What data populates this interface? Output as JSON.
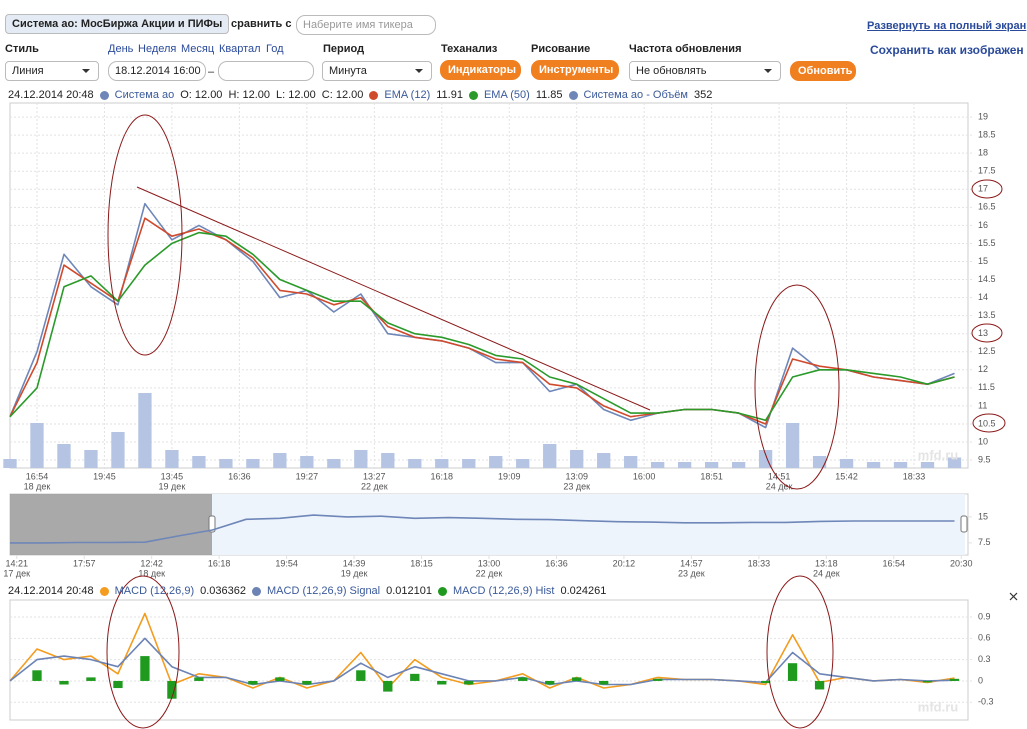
{
  "toolbar": {
    "instrument": "Система ао: МосБиржа Акции и ПИФы",
    "compare_label": "сравнить с",
    "compare_placeholder": "Наберите имя тикера",
    "fullscreen": "Развернуть на полный экран",
    "style_label": "Стиль",
    "ranges": [
      "День",
      "Неделя",
      "Месяц",
      "Квартал",
      "Год"
    ],
    "period_label": "Период",
    "ta_label": "Теханализ",
    "draw_label": "Рисование",
    "refresh_label": "Частота обновления",
    "save_image": "Сохранить как изображен",
    "style_value": "Линия",
    "date_from": "18.12.2014 16:00",
    "date_sep": "–",
    "period_value": "Минута",
    "indicators_button": "Индикаторы",
    "tools_button": "Инструменты",
    "refresh_value": "Не обновлять",
    "update_button": "Обновить"
  },
  "info": {
    "datetime": "24.12.2014 20:48",
    "ohlc": [
      "O: 12.00",
      "H: 12.00",
      "L: 12.00",
      "C: 12.00"
    ]
  },
  "main_chart": {
    "type": "line",
    "x": [
      0,
      4,
      8,
      12,
      16,
      20,
      24,
      28,
      32,
      36,
      40,
      44,
      48,
      52,
      56,
      60,
      64,
      68,
      72,
      76,
      80,
      84,
      88,
      92,
      96,
      100,
      104,
      108,
      112,
      116,
      120,
      124,
      128,
      132,
      136,
      140
    ],
    "xlim": [
      0,
      142
    ],
    "xticks": [
      {
        "value": 4,
        "label": "16:54",
        "date": "18 дек"
      },
      {
        "value": 14,
        "label": "19:45"
      },
      {
        "value": 24,
        "label": "13:45",
        "date": "19 дек"
      },
      {
        "value": 34,
        "label": "16:36"
      },
      {
        "value": 44,
        "label": "19:27"
      },
      {
        "value": 54,
        "label": "13:27",
        "date": "22 дек"
      },
      {
        "value": 64,
        "label": "16:18"
      },
      {
        "value": 74,
        "label": "19:09"
      },
      {
        "value": 84,
        "label": "13:09",
        "date": "23 дек"
      },
      {
        "value": 94,
        "label": "16:00"
      },
      {
        "value": 104,
        "label": "18:51"
      },
      {
        "value": 114,
        "label": "14:51",
        "date": "24 дек"
      },
      {
        "value": 124,
        "label": "15:42"
      },
      {
        "value": 134,
        "label": "18:33"
      }
    ],
    "ylim": [
      9.28,
      19.39
    ],
    "yticks": [
      9.5,
      10,
      10.5,
      11,
      11.5,
      12,
      12.5,
      13,
      13.5,
      14,
      14.5,
      15,
      15.5,
      16,
      16.5,
      17,
      17.5,
      18,
      18.5,
      19
    ],
    "grid": true,
    "series": [
      {
        "name": "Система ао",
        "color": "#6e86b8",
        "values": [
          10.7,
          12.5,
          15.2,
          14.3,
          13.8,
          16.6,
          15.6,
          16.0,
          15.6,
          15.0,
          14.0,
          14.2,
          13.6,
          14.1,
          13.0,
          12.9,
          12.8,
          12.6,
          12.2,
          12.2,
          11.4,
          11.6,
          10.9,
          10.6,
          10.8,
          10.9,
          10.9,
          10.8,
          10.4,
          12.6,
          12.0,
          12.0,
          11.8,
          11.7,
          11.6,
          11.9
        ]
      },
      {
        "name": "EMA (12)",
        "color": "#d04a2c",
        "last": 11.91,
        "values": [
          10.7,
          12.2,
          14.9,
          14.4,
          13.9,
          16.2,
          15.7,
          15.9,
          15.6,
          15.1,
          14.2,
          14.1,
          13.8,
          14.0,
          13.2,
          12.9,
          12.8,
          12.6,
          12.3,
          12.2,
          11.6,
          11.5,
          11.0,
          10.7,
          10.8,
          10.9,
          10.9,
          10.8,
          10.5,
          12.3,
          12.1,
          12.0,
          11.8,
          11.7,
          11.6,
          11.8
        ]
      },
      {
        "name": "EMA (50)",
        "color": "#2a9a2a",
        "last": 11.85,
        "values": [
          10.7,
          11.5,
          14.3,
          14.6,
          13.9,
          14.9,
          15.5,
          15.8,
          15.7,
          15.2,
          14.5,
          14.2,
          13.9,
          13.9,
          13.3,
          13.0,
          12.9,
          12.7,
          12.4,
          12.3,
          11.8,
          11.6,
          11.2,
          10.8,
          10.8,
          10.9,
          10.9,
          10.8,
          10.6,
          11.8,
          12.0,
          12.0,
          11.9,
          11.8,
          11.6,
          11.8
        ]
      }
    ],
    "volume": {
      "name": "Система ао - Объём",
      "color": "#b4c4e2",
      "last": 352,
      "values": [
        300,
        1500,
        800,
        600,
        1200,
        2500,
        600,
        400,
        300,
        300,
        500,
        400,
        300,
        600,
        500,
        300,
        300,
        300,
        400,
        300,
        800,
        600,
        500,
        400,
        200,
        200,
        200,
        200,
        600,
        1500,
        400,
        300,
        200,
        200,
        200,
        350
      ]
    },
    "watermark": "mfd.ru"
  },
  "navigator": {
    "type": "line",
    "x": [
      0,
      5,
      10,
      15,
      20,
      25,
      30,
      35,
      40,
      45,
      50,
      55,
      60,
      65,
      70,
      75,
      80,
      85,
      90,
      95,
      100,
      105,
      110,
      115,
      120,
      125,
      130,
      135,
      140
    ],
    "xlim": [
      0,
      142
    ],
    "xticks": [
      {
        "value": 1,
        "label": "14:21",
        "date": "17 дек"
      },
      {
        "value": 11,
        "label": "17:57"
      },
      {
        "value": 21,
        "label": "12:42",
        "date": "18 дек"
      },
      {
        "value": 31,
        "label": "16:18"
      },
      {
        "value": 41,
        "label": "19:54"
      },
      {
        "value": 51,
        "label": "14:39",
        "date": "19 дек"
      },
      {
        "value": 61,
        "label": "18:15"
      },
      {
        "value": 71,
        "label": "13:00",
        "date": "22 дек"
      },
      {
        "value": 81,
        "label": "16:36"
      },
      {
        "value": 91,
        "label": "20:12"
      },
      {
        "value": 101,
        "label": "14:57",
        "date": "23 дек"
      },
      {
        "value": 111,
        "label": "18:33"
      },
      {
        "value": 121,
        "label": "13:18",
        "date": "24 дек"
      },
      {
        "value": 131,
        "label": "16:54"
      },
      {
        "value": 141,
        "label": "20:30"
      }
    ],
    "ylim": [
      4.0,
      21.6
    ],
    "yticks": [
      7.5,
      15
    ],
    "grid": false,
    "series": [
      {
        "color": "#6e86b8",
        "values": [
          7.5,
          7.5,
          7.6,
          7.6,
          7.7,
          9.5,
          11.2,
          14.3,
          14.6,
          15.5,
          15.0,
          15.2,
          14.6,
          14.8,
          14.6,
          14.3,
          14.2,
          13.9,
          13.6,
          13.5,
          13.3,
          13.3,
          13.4,
          13.4,
          13.7,
          13.8,
          13.8,
          13.8,
          13.8
        ]
      }
    ]
  },
  "macd_chart": {
    "type": "line",
    "datetime": "24.12.2014 20:48",
    "x": [
      0,
      4,
      8,
      12,
      16,
      20,
      24,
      28,
      32,
      36,
      40,
      44,
      48,
      52,
      56,
      60,
      64,
      68,
      72,
      76,
      80,
      84,
      88,
      92,
      96,
      100,
      104,
      108,
      112,
      116,
      120,
      124,
      128,
      132,
      136,
      140
    ],
    "xlim": [
      0,
      142
    ],
    "ylim": [
      -0.55,
      1.14
    ],
    "yticks": [
      -0.3,
      0,
      0.3,
      0.6,
      0.9
    ],
    "grid": true,
    "series": [
      {
        "name": "MACD (12,26,9)",
        "color": "#f39c1f",
        "last": 0.036362,
        "values": [
          0,
          0.45,
          0.3,
          0.35,
          0.1,
          0.95,
          -0.05,
          0.1,
          0.05,
          -0.1,
          0.05,
          -0.1,
          0.0,
          0.4,
          -0.1,
          0.3,
          0.05,
          -0.05,
          0.0,
          0.1,
          -0.1,
          0.05,
          -0.1,
          -0.05,
          0.05,
          0.02,
          0.02,
          0.0,
          -0.05,
          0.65,
          -0.02,
          0.05,
          0.0,
          0.02,
          -0.02,
          0.04
        ]
      },
      {
        "name": "MACD (12,26,9) Signal",
        "color": "#6c83b5",
        "last": 0.012101,
        "values": [
          0,
          0.3,
          0.35,
          0.3,
          0.2,
          0.6,
          0.2,
          0.05,
          0.05,
          -0.05,
          0.0,
          -0.05,
          0.0,
          0.25,
          0.05,
          0.2,
          0.1,
          0.0,
          0.0,
          0.05,
          -0.05,
          0.0,
          -0.05,
          -0.05,
          0.02,
          0.02,
          0.02,
          0.0,
          -0.02,
          0.4,
          0.1,
          0.05,
          0.0,
          0.02,
          0.0,
          0.01
        ]
      },
      {
        "name": "MACD (12,26,9) Hist",
        "color": "#1f9a1f",
        "type": "bar",
        "last": 0.024261,
        "values": [
          0,
          0.15,
          -0.05,
          0.05,
          -0.1,
          0.35,
          -0.25,
          0.05,
          0,
          -0.05,
          0.05,
          -0.05,
          0,
          0.15,
          -0.15,
          0.1,
          -0.05,
          -0.05,
          0,
          0.05,
          -0.05,
          0.05,
          -0.05,
          0,
          0.03,
          0,
          0,
          0,
          -0.03,
          0.25,
          -0.12,
          0,
          0,
          0,
          -0.02,
          0.03
        ]
      }
    ],
    "watermark": "mfd.ru"
  }
}
